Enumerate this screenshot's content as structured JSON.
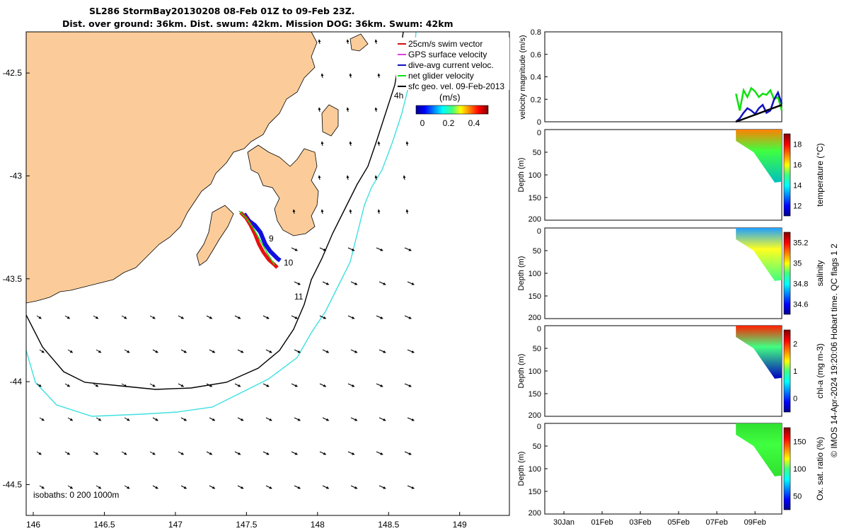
{
  "title_line1": "SL286 StormBay20130208 08-Feb 01Z to 09-Feb 23Z.",
  "title_line2": "Dist. over ground: 36km. Dist. swum: 42km. Mission DOG: 36km. Swum: 42km",
  "credit": "© IMOS 14-Apr-2024 19:20:06 Hobart time. QC flags 1  2",
  "isobaths_label": "isobaths: 0   200  1000m",
  "colorbar_unit": "(m/s)",
  "colorbar_ticks": [
    "0",
    "0.2",
    "0.4"
  ],
  "legend": [
    {
      "label": "25cm/s swim vector",
      "color": "#d01010"
    },
    {
      "label": "GPS surface velocity",
      "color": "#e040e0"
    },
    {
      "label": "dive-avg current veloc.",
      "color": "#1010c0"
    },
    {
      "label": "net glider velocity",
      "color": "#10e010"
    },
    {
      "label": "sfc geo. vel. 09-Feb-2013",
      "color": "#000000"
    }
  ],
  "colors": {
    "land": "#fbcc99",
    "isobath_200": "#000000",
    "isobath_1000": "#40e0e0",
    "track_red": "#e81010",
    "track_blue": "#1010e0"
  },
  "chart_data": [
    {
      "type": "scatter",
      "xlim": [
        145.95,
        149.35
      ],
      "ylim": [
        -44.65,
        -42.3
      ],
      "x_ticks": [
        "146",
        "146.5",
        "147",
        "147.5",
        "148",
        "148.5",
        "149"
      ],
      "y_ticks": [
        "-42.5",
        "-43",
        "-43.5",
        "-44",
        "-44.5"
      ],
      "track_labels": [
        "4h",
        "9",
        "10",
        "11"
      ],
      "grid": false
    },
    {
      "type": "line",
      "ylabel": "velocity magnitude (m/s)",
      "ylim": [
        0,
        0.8
      ],
      "y_ticks": [
        "0",
        "0.2",
        "0.4",
        "0.6",
        "0.8"
      ],
      "series": [
        {
          "color": "#10e010",
          "x": [
            8.0,
            8.2,
            8.4,
            8.6,
            8.8,
            9.0,
            9.2,
            9.4,
            9.6,
            9.8,
            10.0,
            10.2,
            10.4
          ],
          "values": [
            0.25,
            0.1,
            0.28,
            0.22,
            0.3,
            0.27,
            0.22,
            0.25,
            0.24,
            0.28,
            0.2,
            0.22,
            0.1
          ]
        },
        {
          "color": "#1010c0",
          "x": [
            8.0,
            8.2,
            8.4,
            8.6,
            8.8,
            9.0,
            9.2,
            9.4,
            9.6,
            9.8,
            10.0,
            10.2,
            10.4
          ],
          "values": [
            0.0,
            0.03,
            0.08,
            0.12,
            0.1,
            0.07,
            0.12,
            0.15,
            0.08,
            0.1,
            0.2,
            0.26,
            0.16
          ]
        },
        {
          "color": "#000000",
          "x": [
            8.0,
            10.4
          ],
          "values": [
            0.0,
            0.15
          ]
        }
      ]
    },
    {
      "type": "heatmap",
      "ylabel": "Depth (m)",
      "clabel": "temperature (°C)",
      "ylim": [
        200,
        0
      ],
      "y_ticks": [
        "0",
        "50",
        "100",
        "150",
        "200"
      ],
      "c_ticks": [
        "12",
        "14",
        "16",
        "18"
      ],
      "max_depth": 115
    },
    {
      "type": "heatmap",
      "ylabel": "Depth (m)",
      "clabel": "salinity",
      "ylim": [
        200,
        0
      ],
      "y_ticks": [
        "0",
        "50",
        "100",
        "150",
        "200"
      ],
      "c_ticks": [
        "34.6",
        "34.8",
        "35",
        "35.2"
      ],
      "max_depth": 115
    },
    {
      "type": "heatmap",
      "ylabel": "Depth (m)",
      "clabel": "chl-a (mg m-3)",
      "ylim": [
        200,
        0
      ],
      "y_ticks": [
        "0",
        "50",
        "100",
        "150",
        "200"
      ],
      "c_ticks": [
        "0",
        "1",
        "2"
      ],
      "max_depth": 115
    },
    {
      "type": "heatmap",
      "ylabel": "Depth (m)",
      "clabel": "Ox. sat. ratio (%)",
      "ylim": [
        200,
        0
      ],
      "y_ticks": [
        "0",
        "50",
        "100",
        "150",
        "200"
      ],
      "c_ticks": [
        "50",
        "100",
        "150"
      ],
      "max_depth": 115,
      "x_ticks": [
        "30Jan",
        "01Feb",
        "03Feb",
        "05Feb",
        "07Feb",
        "09Feb"
      ]
    }
  ]
}
